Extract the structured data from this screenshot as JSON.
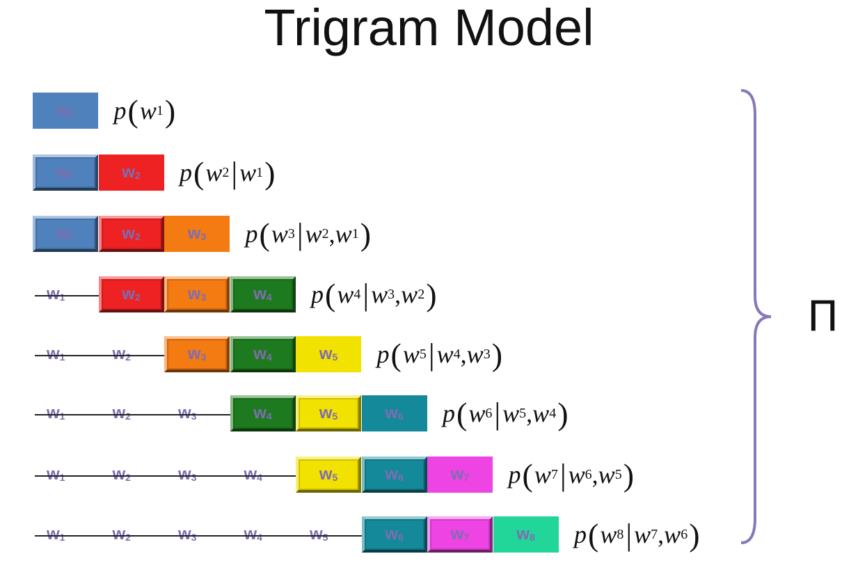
{
  "title": "Trigram Model",
  "colors": {
    "w1": "#4f81bd",
    "w2": "#ee2222",
    "w3": "#f47a12",
    "w4": "#1e7a1e",
    "w5": "#f2e200",
    "w6": "#14899a",
    "w7": "#ee44e4",
    "w8": "#22d69a",
    "label": "#7e6db0"
  },
  "rows": [
    {
      "struck": [],
      "boxes": [
        {
          "w": "w",
          "n": "1",
          "bevel": false
        }
      ],
      "prob": {
        "p": "p",
        "target": "w",
        "tn": "1",
        "given": []
      }
    },
    {
      "struck": [],
      "boxes": [
        {
          "w": "w",
          "n": "1",
          "bevel": true
        },
        {
          "w": "w",
          "n": "2",
          "bevel": false
        }
      ],
      "prob": {
        "p": "p",
        "target": "w",
        "tn": "2",
        "given": [
          {
            "w": "w",
            "n": "1"
          }
        ]
      }
    },
    {
      "struck": [],
      "boxes": [
        {
          "w": "w",
          "n": "1",
          "bevel": true
        },
        {
          "w": "w",
          "n": "2",
          "bevel": true
        },
        {
          "w": "w",
          "n": "3",
          "bevel": false
        }
      ],
      "prob": {
        "p": "p",
        "target": "w",
        "tn": "3",
        "given": [
          {
            "w": "w",
            "n": "2"
          },
          {
            "w": "w",
            "n": "1"
          }
        ]
      }
    },
    {
      "struck": [
        {
          "w": "w",
          "n": "1"
        }
      ],
      "boxes": [
        {
          "w": "w",
          "n": "2",
          "bevel": true
        },
        {
          "w": "w",
          "n": "3",
          "bevel": true
        },
        {
          "w": "w",
          "n": "4",
          "bevel": true
        }
      ],
      "prob": {
        "p": "p",
        "target": "w",
        "tn": "4",
        "given": [
          {
            "w": "w",
            "n": "3"
          },
          {
            "w": "w",
            "n": "2"
          }
        ]
      }
    },
    {
      "struck": [
        {
          "w": "w",
          "n": "1"
        },
        {
          "w": "w",
          "n": "2"
        }
      ],
      "boxes": [
        {
          "w": "w",
          "n": "3",
          "bevel": true
        },
        {
          "w": "w",
          "n": "4",
          "bevel": true
        },
        {
          "w": "w",
          "n": "5",
          "bevel": false
        }
      ],
      "prob": {
        "p": "p",
        "target": "w",
        "tn": "5",
        "given": [
          {
            "w": "w",
            "n": "4"
          },
          {
            "w": "w",
            "n": "3"
          }
        ]
      }
    },
    {
      "struck": [
        {
          "w": "w",
          "n": "1"
        },
        {
          "w": "w",
          "n": "2"
        },
        {
          "w": "w",
          "n": "3"
        }
      ],
      "boxes": [
        {
          "w": "w",
          "n": "4",
          "bevel": true
        },
        {
          "w": "w",
          "n": "5",
          "bevel": true
        },
        {
          "w": "w",
          "n": "6",
          "bevel": false
        }
      ],
      "prob": {
        "p": "p",
        "target": "w",
        "tn": "6",
        "given": [
          {
            "w": "w",
            "n": "5"
          },
          {
            "w": "w",
            "n": "4"
          }
        ]
      }
    },
    {
      "struck": [
        {
          "w": "w",
          "n": "1"
        },
        {
          "w": "w",
          "n": "2"
        },
        {
          "w": "w",
          "n": "3"
        },
        {
          "w": "w",
          "n": "4"
        }
      ],
      "boxes": [
        {
          "w": "w",
          "n": "5",
          "bevel": true
        },
        {
          "w": "w",
          "n": "6",
          "bevel": true
        },
        {
          "w": "w",
          "n": "7",
          "bevel": false
        }
      ],
      "prob": {
        "p": "p",
        "target": "w",
        "tn": "7",
        "given": [
          {
            "w": "w",
            "n": "6"
          },
          {
            "w": "w",
            "n": "5"
          }
        ]
      }
    },
    {
      "struck": [
        {
          "w": "w",
          "n": "1"
        },
        {
          "w": "w",
          "n": "2"
        },
        {
          "w": "w",
          "n": "3"
        },
        {
          "w": "w",
          "n": "4"
        },
        {
          "w": "w",
          "n": "5"
        }
      ],
      "boxes": [
        {
          "w": "w",
          "n": "6",
          "bevel": true
        },
        {
          "w": "w",
          "n": "7",
          "bevel": true
        },
        {
          "w": "w",
          "n": "8",
          "bevel": false
        }
      ],
      "prob": {
        "p": "p",
        "target": "w",
        "tn": "8",
        "given": [
          {
            "w": "w",
            "n": "7"
          },
          {
            "w": "w",
            "n": "6"
          }
        ]
      }
    }
  ],
  "product_symbol": "Π"
}
